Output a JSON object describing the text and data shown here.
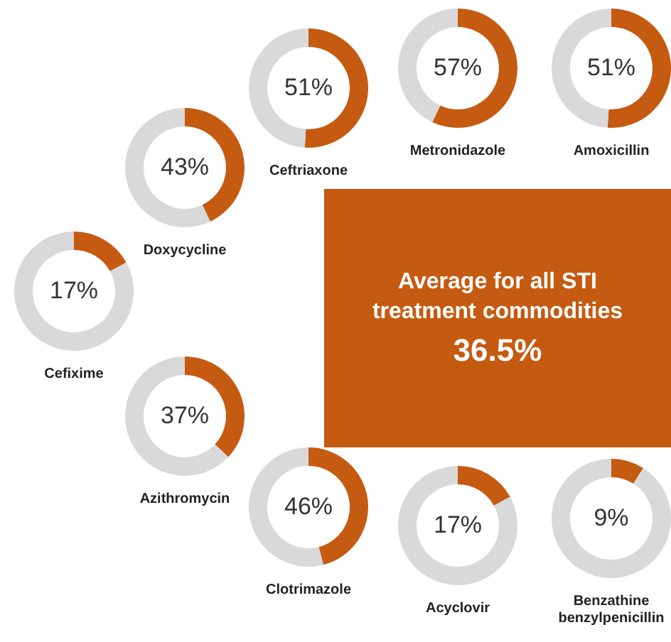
{
  "chart_data": [
    {
      "type": "donut",
      "title": "Cefixime",
      "categories": [
        null,
        null
      ],
      "values": [
        17,
        83
      ],
      "colors": [
        "#c55a11",
        "#d9d9d9"
      ],
      "value_labels": [
        "17%",
        null
      ]
    },
    {
      "type": "donut",
      "title": "Doxycycline",
      "categories": [
        null,
        null
      ],
      "values": [
        43,
        57
      ],
      "colors": [
        "#c55a11",
        "#d9d9d9"
      ],
      "value_labels": [
        "43%",
        null
      ]
    },
    {
      "type": "donut",
      "title": "Ceftriaxone",
      "categories": [
        null,
        null
      ],
      "values": [
        51,
        49
      ],
      "colors": [
        "#c55a11",
        "#d9d9d9"
      ],
      "value_labels": [
        "51%",
        null
      ]
    },
    {
      "type": "donut",
      "title": "Metronidazole",
      "categories": [
        null,
        null
      ],
      "values": [
        57,
        43
      ],
      "colors": [
        "#c55a11",
        "#d9d9d9"
      ],
      "value_labels": [
        "57%",
        null
      ]
    },
    {
      "type": "donut",
      "title": "Amoxicillin",
      "categories": [
        null,
        null
      ],
      "values": [
        51,
        49
      ],
      "colors": [
        "#c55a11",
        "#d9d9d9"
      ],
      "value_labels": [
        "51%",
        null
      ]
    },
    {
      "type": "other",
      "title": "Average for all STI treatment commodities",
      "annotations": [
        "36.5%"
      ]
    },
    {
      "type": "donut",
      "title": "Azithromycin",
      "categories": [
        null,
        null
      ],
      "values": [
        37,
        63
      ],
      "colors": [
        "#c55a11",
        "#d9d9d9"
      ],
      "value_labels": [
        "37%",
        null
      ]
    },
    {
      "type": "donut",
      "title": "Clotrimazole",
      "categories": [
        null,
        null
      ],
      "values": [
        46,
        54
      ],
      "colors": [
        "#c55a11",
        "#d9d9d9"
      ],
      "value_labels": [
        "46%",
        null
      ]
    },
    {
      "type": "donut",
      "title": "Acyclovir",
      "categories": [
        null,
        null
      ],
      "values": [
        17,
        83
      ],
      "colors": [
        "#c55a11",
        "#d9d9d9"
      ],
      "value_labels": [
        "17%",
        null
      ]
    },
    {
      "type": "donut",
      "title": "Benzathine benzylpenicillin",
      "categories": [
        null,
        null
      ],
      "values": [
        9,
        91
      ],
      "colors": [
        "#c55a11",
        "#d9d9d9"
      ],
      "value_labels": [
        "9%",
        null
      ]
    }
  ]
}
